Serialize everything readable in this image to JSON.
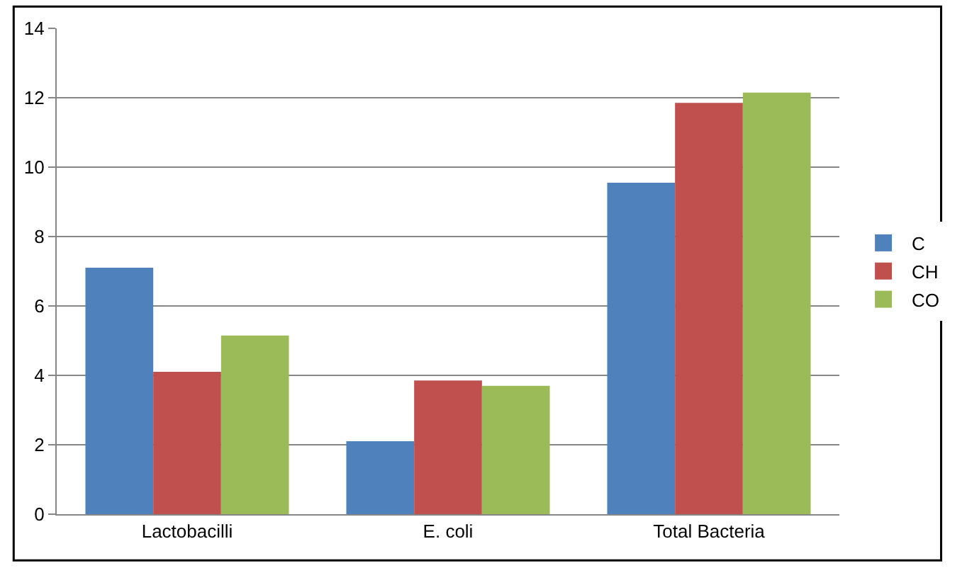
{
  "chart_data": {
    "type": "bar",
    "categories": [
      "Lactobacilli",
      "E. coli",
      "Total Bacteria"
    ],
    "series": [
      {
        "name": "C",
        "color": "#4f81bd",
        "values": [
          7.1,
          2.1,
          9.55
        ]
      },
      {
        "name": "CH",
        "color": "#c0504d",
        "values": [
          4.1,
          3.85,
          11.85
        ]
      },
      {
        "name": "CO",
        "color": "#9bbb59",
        "values": [
          5.15,
          3.7,
          12.15
        ]
      }
    ],
    "ylim": [
      0,
      14
    ],
    "yticks": [
      0,
      2,
      4,
      6,
      8,
      10,
      12,
      14
    ],
    "grid": "y",
    "legend": "right"
  }
}
